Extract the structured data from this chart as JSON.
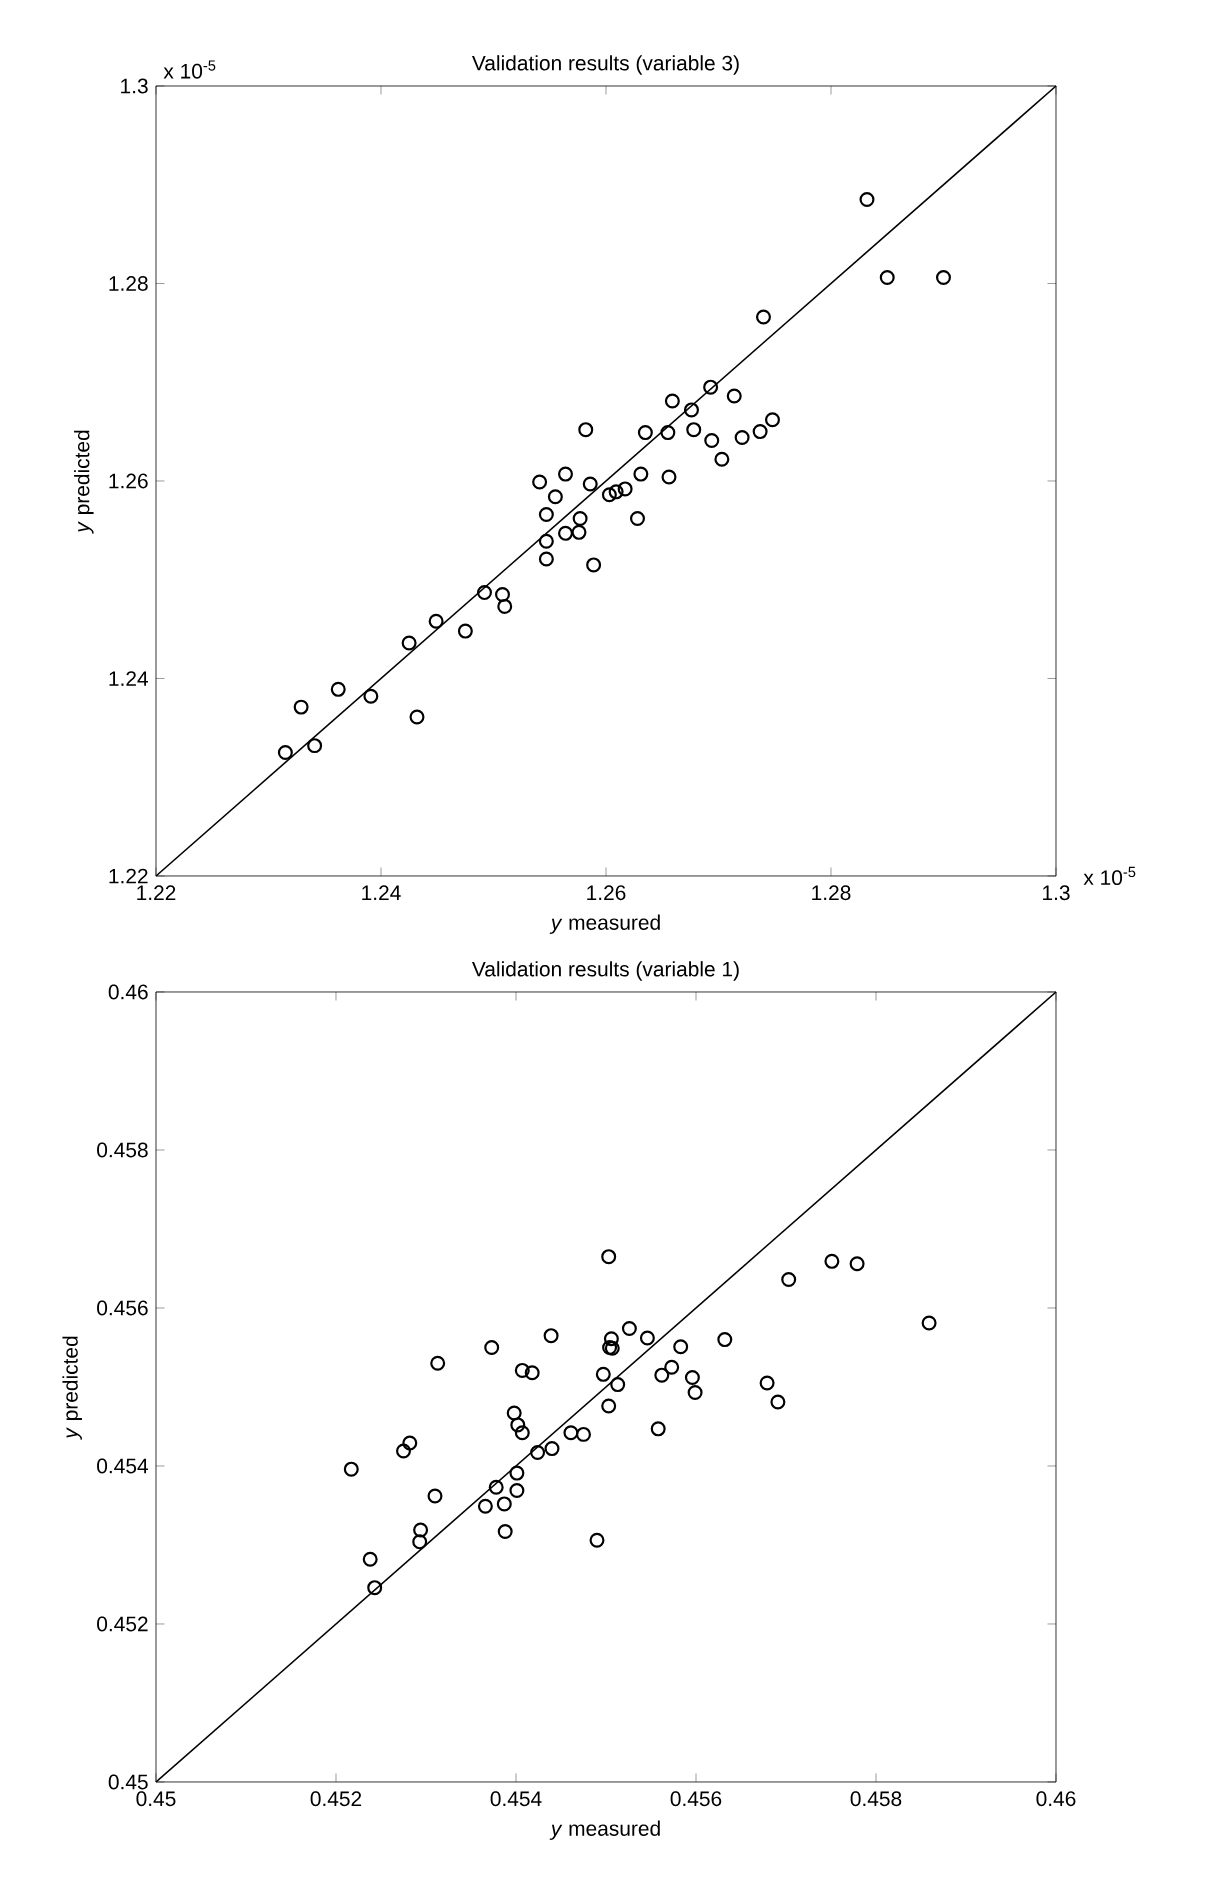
{
  "chart_data": [
    {
      "type": "scatter",
      "title": "Validation results (variable 3)",
      "xlabel": "*y* measured",
      "ylabel": "*y* predicted",
      "marker": "circle",
      "grid": false,
      "xlim": [
        1.22,
        1.3
      ],
      "ylim": [
        1.22,
        1.3
      ],
      "xticks": [
        1.22,
        1.24,
        1.26,
        1.28,
        1.3
      ],
      "yticks": [
        1.22,
        1.24,
        1.26,
        1.28,
        1.3
      ],
      "annotations": [
        "x 10$^{-5}$",
        "x 10$^{-5}$"
      ],
      "series": [
        {
          "color": "#000000",
          "x": [
            1.2315,
            1.2341,
            1.2329,
            1.2362,
            1.2391,
            1.2432,
            1.2425,
            1.2449,
            1.2475,
            1.2492,
            1.251,
            1.2508,
            1.2547,
            1.2547,
            1.2547,
            1.2541,
            1.2555,
            1.2564,
            1.2564,
            1.2576,
            1.2577,
            1.2582,
            1.2586,
            1.2589,
            1.2603,
            1.2609,
            1.2617,
            1.2628,
            1.2631,
            1.2635,
            1.2656,
            1.2655,
            1.2659,
            1.2676,
            1.2678,
            1.2693,
            1.2694,
            1.2703,
            1.2714,
            1.2721,
            1.2737,
            1.2748,
            1.274,
            1.2832,
            1.285,
            1.29
          ],
          "values": [
            1.2325,
            1.2332,
            1.2371,
            1.2389,
            1.2382,
            1.2361,
            1.2436,
            1.2458,
            1.2448,
            1.2487,
            1.2473,
            1.2485,
            1.2521,
            1.2539,
            1.2566,
            1.2599,
            1.2584,
            1.2607,
            1.2547,
            1.2548,
            1.2562,
            1.2652,
            1.2597,
            1.2515,
            1.2586,
            1.2589,
            1.2592,
            1.2562,
            1.2607,
            1.2649,
            1.2604,
            1.2649,
            1.2681,
            1.2672,
            1.2652,
            1.2695,
            1.2641,
            1.2622,
            1.2686,
            1.2644,
            1.265,
            1.2662,
            1.2766,
            1.2885,
            1.2806,
            1.2806
          ]
        },
        {
          "type": "line",
          "marker": "none",
          "color": "#000000",
          "x": [
            1.22,
            1.3
          ],
          "values": [
            1.22,
            1.3
          ]
        }
      ]
    },
    {
      "type": "scatter",
      "title": "Validation results (variable 1)",
      "xlabel": "*y* measured",
      "ylabel": "*y* predicted",
      "marker": "circle",
      "grid": false,
      "xlim": [
        0.45,
        0.46
      ],
      "ylim": [
        0.45,
        0.46
      ],
      "xticks": [
        0.45,
        0.452,
        0.454,
        0.456,
        0.458,
        0.46
      ],
      "yticks": [
        0.45,
        0.452,
        0.454,
        0.456,
        0.458,
        0.46
      ],
      "series": [
        {
          "color": "#000000",
          "x": [
            0.45217,
            0.45238,
            0.45243,
            0.45275,
            0.45282,
            0.45294,
            0.45293,
            0.4531,
            0.45313,
            0.45366,
            0.45373,
            0.45378,
            0.45387,
            0.45388,
            0.45401,
            0.45401,
            0.45398,
            0.45402,
            0.45407,
            0.45407,
            0.45418,
            0.45424,
            0.45439,
            0.4544,
            0.45461,
            0.45475,
            0.4549,
            0.45497,
            0.45503,
            0.45503,
            0.45504,
            0.45506,
            0.45507,
            0.45513,
            0.45526,
            0.45546,
            0.45558,
            0.45562,
            0.45573,
            0.45583,
            0.45596,
            0.45599,
            0.45632,
            0.45679,
            0.45691,
            0.45703,
            0.45751,
            0.45779,
            0.45859
          ],
          "values": [
            0.45396,
            0.45282,
            0.45246,
            0.45419,
            0.45429,
            0.45319,
            0.45304,
            0.45362,
            0.4553,
            0.45349,
            0.4555,
            0.45373,
            0.45352,
            0.45317,
            0.45391,
            0.45369,
            0.45467,
            0.45452,
            0.45442,
            0.45521,
            0.45518,
            0.45417,
            0.45565,
            0.45422,
            0.45442,
            0.4544,
            0.45306,
            0.45516,
            0.45665,
            0.45476,
            0.4555,
            0.45561,
            0.45549,
            0.45503,
            0.45574,
            0.45562,
            0.45447,
            0.45515,
            0.45525,
            0.45551,
            0.45512,
            0.45493,
            0.4556,
            0.45505,
            0.45481,
            0.45636,
            0.45659,
            0.45656,
            0.45581
          ]
        },
        {
          "type": "line",
          "marker": "none",
          "color": "#000000",
          "x": [
            0.45,
            0.46
          ],
          "values": [
            0.45,
            0.46
          ]
        }
      ]
    }
  ]
}
